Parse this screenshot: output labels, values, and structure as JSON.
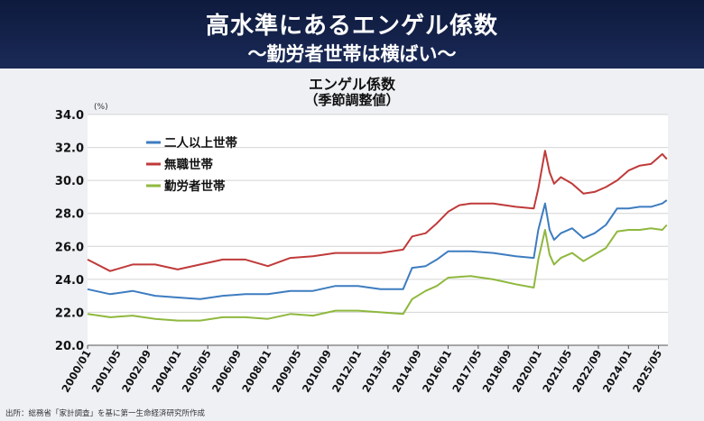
{
  "header": {
    "title": "高水準にあるエンゲル係数",
    "subtitle": "〜勤労者世帯は横ばい〜"
  },
  "source": "出所：総務省「家計調査」を基に第一生命経済研究所作成",
  "chart_data": {
    "type": "line",
    "title": "エンゲル係数",
    "subtitle": "（季節調整値）",
    "unit": "(%)",
    "ylim": [
      20.0,
      34.0
    ],
    "yticks": [
      "20.0",
      "22.0",
      "24.0",
      "26.0",
      "28.0",
      "30.0",
      "32.0",
      "34.0"
    ],
    "xlim": [
      2000.0,
      2025.75
    ],
    "x_tick_labels": [
      "2000/01",
      "2001/05",
      "2002/09",
      "2004/01",
      "2005/05",
      "2006/09",
      "2008/01",
      "2009/05",
      "2010/09",
      "2012/01",
      "2013/05",
      "2014/09",
      "2016/01",
      "2017/05",
      "2018/09",
      "2020/01",
      "2021/05",
      "2022/09",
      "2024/01",
      "2025/05"
    ],
    "grid": "horizontal",
    "legend_position": "top-left",
    "series": [
      {
        "name": "二人以上世帯",
        "color": "#3d7cc0",
        "x": [
          2000.0,
          2001.0,
          2002.0,
          2003.0,
          2004.0,
          2005.0,
          2006.0,
          2007.0,
          2008.0,
          2009.0,
          2010.0,
          2011.0,
          2012.0,
          2013.0,
          2014.0,
          2014.4,
          2015.0,
          2015.5,
          2016.0,
          2017.0,
          2018.0,
          2019.0,
          2019.8,
          2020.0,
          2020.3,
          2020.5,
          2020.7,
          2021.0,
          2021.5,
          2022.0,
          2022.5,
          2023.0,
          2023.5,
          2024.0,
          2024.5,
          2025.0,
          2025.5,
          2025.7
        ],
        "values": [
          23.4,
          23.1,
          23.3,
          23.0,
          22.9,
          22.8,
          23.0,
          23.1,
          23.1,
          23.3,
          23.3,
          23.6,
          23.6,
          23.4,
          23.4,
          24.7,
          24.8,
          25.2,
          25.7,
          25.7,
          25.6,
          25.4,
          25.3,
          27.0,
          28.6,
          27.0,
          26.4,
          26.8,
          27.1,
          26.5,
          26.8,
          27.3,
          28.3,
          28.3,
          28.4,
          28.4,
          28.6,
          28.8
        ]
      },
      {
        "name": "無職世帯",
        "color": "#c03a3a",
        "x": [
          2000.0,
          2001.0,
          2002.0,
          2003.0,
          2004.0,
          2005.0,
          2006.0,
          2007.0,
          2008.0,
          2009.0,
          2010.0,
          2011.0,
          2012.0,
          2013.0,
          2014.0,
          2014.4,
          2015.0,
          2015.5,
          2016.0,
          2016.5,
          2017.0,
          2018.0,
          2019.0,
          2019.8,
          2020.0,
          2020.3,
          2020.5,
          2020.7,
          2021.0,
          2021.5,
          2022.0,
          2022.5,
          2023.0,
          2023.5,
          2024.0,
          2024.5,
          2025.0,
          2025.5,
          2025.7
        ],
        "values": [
          25.2,
          24.5,
          24.9,
          24.9,
          24.6,
          24.9,
          25.2,
          25.2,
          24.8,
          25.3,
          25.4,
          25.6,
          25.6,
          25.6,
          25.8,
          26.6,
          26.8,
          27.4,
          28.1,
          28.5,
          28.6,
          28.6,
          28.4,
          28.3,
          29.5,
          31.8,
          30.5,
          29.8,
          30.2,
          29.8,
          29.2,
          29.3,
          29.6,
          30.0,
          30.6,
          30.9,
          31.0,
          31.6,
          31.3
        ]
      },
      {
        "name": "勤労者世帯",
        "color": "#8fb83e",
        "x": [
          2000.0,
          2001.0,
          2002.0,
          2003.0,
          2004.0,
          2005.0,
          2006.0,
          2007.0,
          2008.0,
          2009.0,
          2010.0,
          2011.0,
          2012.0,
          2013.0,
          2014.0,
          2014.4,
          2015.0,
          2015.5,
          2016.0,
          2017.0,
          2018.0,
          2019.0,
          2019.8,
          2020.0,
          2020.3,
          2020.5,
          2020.7,
          2021.0,
          2021.5,
          2022.0,
          2022.5,
          2023.0,
          2023.5,
          2024.0,
          2024.5,
          2025.0,
          2025.5,
          2025.7
        ],
        "values": [
          21.9,
          21.7,
          21.8,
          21.6,
          21.5,
          21.5,
          21.7,
          21.7,
          21.6,
          21.9,
          21.8,
          22.1,
          22.1,
          22.0,
          21.9,
          22.8,
          23.3,
          23.6,
          24.1,
          24.2,
          24.0,
          23.7,
          23.5,
          25.2,
          27.0,
          25.5,
          24.9,
          25.3,
          25.6,
          25.1,
          25.5,
          25.9,
          26.9,
          27.0,
          27.0,
          27.1,
          27.0,
          27.3
        ]
      }
    ]
  }
}
